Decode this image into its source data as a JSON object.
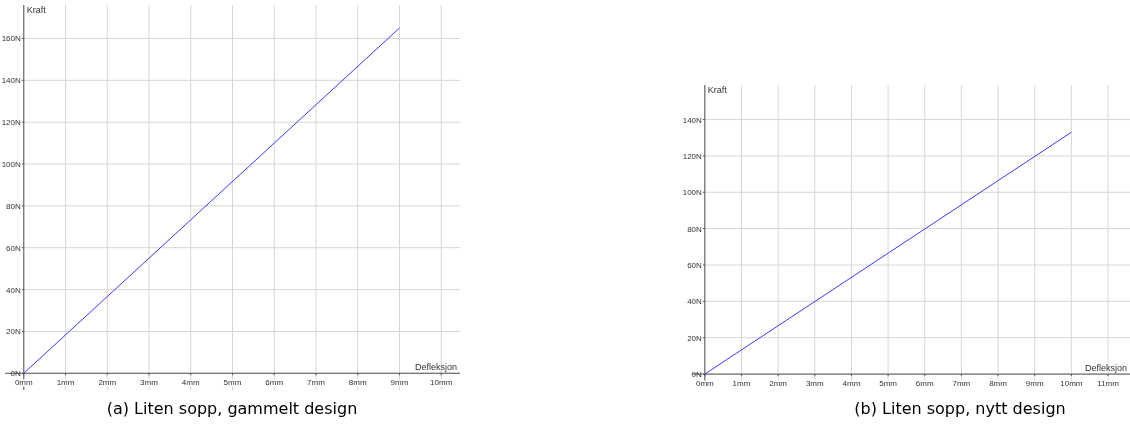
{
  "chart_data": [
    {
      "type": "line",
      "title": "(a) Liten sopp, gammelt design",
      "xlabel": "Defleksjon",
      "ylabel": "Kraft",
      "x": [
        0,
        9
      ],
      "series": [
        {
          "color": "#3a3aff",
          "values": [
            0,
            165
          ]
        }
      ],
      "xlim": [
        -0.45,
        10.45
      ],
      "ylim": [
        -8,
        176
      ],
      "xticks": [
        {
          "value": 0,
          "label": "0mm"
        },
        {
          "value": 1,
          "label": "1mm"
        },
        {
          "value": 2,
          "label": "2mm"
        },
        {
          "value": 3,
          "label": "3mm"
        },
        {
          "value": 4,
          "label": "4mm"
        },
        {
          "value": 5,
          "label": "5mm"
        },
        {
          "value": 6,
          "label": "6mm"
        },
        {
          "value": 7,
          "label": "7mm"
        },
        {
          "value": 8,
          "label": "8mm"
        },
        {
          "value": 9,
          "label": "9mm"
        },
        {
          "value": 10,
          "label": "10mm"
        }
      ],
      "yticks": [
        {
          "value": 0,
          "label": "0N"
        },
        {
          "value": 20,
          "label": "20N"
        },
        {
          "value": 40,
          "label": "40N"
        },
        {
          "value": 60,
          "label": "60N"
        },
        {
          "value": 80,
          "label": "80N"
        },
        {
          "value": 100,
          "label": "100N"
        },
        {
          "value": 120,
          "label": "120N"
        },
        {
          "value": 140,
          "label": "140N"
        },
        {
          "value": 160,
          "label": "160N"
        }
      ],
      "grid": true,
      "marker": "none",
      "line_style": "solid"
    },
    {
      "type": "line",
      "title": "(b) Liten sopp, nytt design",
      "xlabel": "Defleksjon",
      "ylabel": "Kraft",
      "x": [
        0,
        10
      ],
      "series": [
        {
          "color": "#3a3aff",
          "values": [
            0,
            133
          ]
        }
      ],
      "xlim": [
        -0.35,
        11.6
      ],
      "ylim": [
        -6,
        159
      ],
      "xticks": [
        {
          "value": 0,
          "label": "0mm"
        },
        {
          "value": 1,
          "label": "1mm"
        },
        {
          "value": 2,
          "label": "2mm"
        },
        {
          "value": 3,
          "label": "3mm"
        },
        {
          "value": 4,
          "label": "4mm"
        },
        {
          "value": 5,
          "label": "5mm"
        },
        {
          "value": 6,
          "label": "6mm"
        },
        {
          "value": 7,
          "label": "7mm"
        },
        {
          "value": 8,
          "label": "8mm"
        },
        {
          "value": 9,
          "label": "9mm"
        },
        {
          "value": 10,
          "label": "10mm"
        },
        {
          "value": 11,
          "label": "11mm"
        }
      ],
      "yticks": [
        {
          "value": 0,
          "label": "0N"
        },
        {
          "value": 20,
          "label": "20N"
        },
        {
          "value": 40,
          "label": "40N"
        },
        {
          "value": 60,
          "label": "60N"
        },
        {
          "value": 80,
          "label": "80N"
        },
        {
          "value": 100,
          "label": "100N"
        },
        {
          "value": 120,
          "label": "120N"
        },
        {
          "value": 140,
          "label": "140N"
        }
      ],
      "grid": true,
      "marker": "none",
      "line_style": "solid"
    }
  ]
}
